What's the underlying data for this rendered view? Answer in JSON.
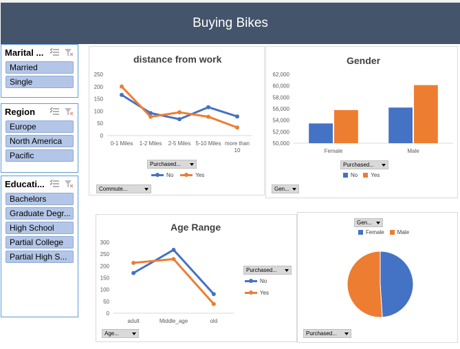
{
  "banner": {
    "title": "Buying Bikes"
  },
  "slicers": {
    "marital": {
      "title": "Marital ...",
      "items": [
        "Married",
        "Single"
      ]
    },
    "region": {
      "title": "Region",
      "items": [
        "Europe",
        "North America",
        "Pacific"
      ]
    },
    "education": {
      "title": "Educati...",
      "items": [
        "Bachelors",
        "Graduate Degr...",
        "High School",
        "Partial College",
        "Partial High S..."
      ]
    }
  },
  "colors": {
    "no": "#4472c4",
    "yes": "#ed7d31",
    "slicer_item": "#b4c6e7",
    "banner": "#44546a"
  },
  "filters": {
    "distance_purchased": "Purchased...",
    "distance_commute": "Commute...",
    "gender_purchased": "Purchased...",
    "gender_gen": "Gen...",
    "age_purchased": "Purchased...",
    "age_age": "Age...",
    "pie_gen": "Gen...",
    "pie_purchased": "Purchased..."
  },
  "legend": {
    "no": "No",
    "yes": "Yes",
    "female": "Female",
    "male": "Male"
  },
  "chart_data": [
    {
      "id": "distance",
      "type": "line",
      "title": "distance from work",
      "categories": [
        "0-1 Miles",
        "1-2 Miles",
        "2-5 Miles",
        "5-10 Miles",
        "more than 10"
      ],
      "category_lines": [
        [
          "0-1 Miles"
        ],
        [
          "1-2 Miles"
        ],
        [
          "2-5 Miles"
        ],
        [
          "5-10 Miles"
        ],
        [
          "more than",
          "10"
        ]
      ],
      "series": [
        {
          "name": "No",
          "values": [
            166,
            92,
            67,
            116,
            78
          ]
        },
        {
          "name": "Yes",
          "values": [
            200,
            77,
            95,
            77,
            33
          ]
        }
      ],
      "ylim": [
        0,
        250
      ],
      "yticks": [
        0,
        50,
        100,
        150,
        200,
        250
      ]
    },
    {
      "id": "gender",
      "type": "bar",
      "title": "Gender",
      "categories": [
        "Female",
        "Male"
      ],
      "series": [
        {
          "name": "No",
          "values": [
            53440,
            56208
          ]
        },
        {
          "name": "Yes",
          "values": [
            55774,
            60124
          ]
        }
      ],
      "ylim": [
        50000,
        62000
      ],
      "yticks": [
        "50,000",
        "52,000",
        "54,000",
        "56,000",
        "58,000",
        "60,000",
        "62,000"
      ]
    },
    {
      "id": "age",
      "type": "line",
      "title": "Age  Range",
      "categories": [
        "adult",
        "Middle_age",
        "old"
      ],
      "series": [
        {
          "name": "No",
          "values": [
            170,
            268,
            81
          ]
        },
        {
          "name": "Yes",
          "values": [
            213,
            229,
            39
          ]
        }
      ],
      "ylim": [
        0,
        300
      ],
      "yticks": [
        0,
        50,
        100,
        150,
        200,
        250,
        300
      ]
    },
    {
      "id": "pie",
      "type": "pie",
      "categories": [
        "Female",
        "Male"
      ],
      "values": [
        49,
        51
      ]
    }
  ]
}
